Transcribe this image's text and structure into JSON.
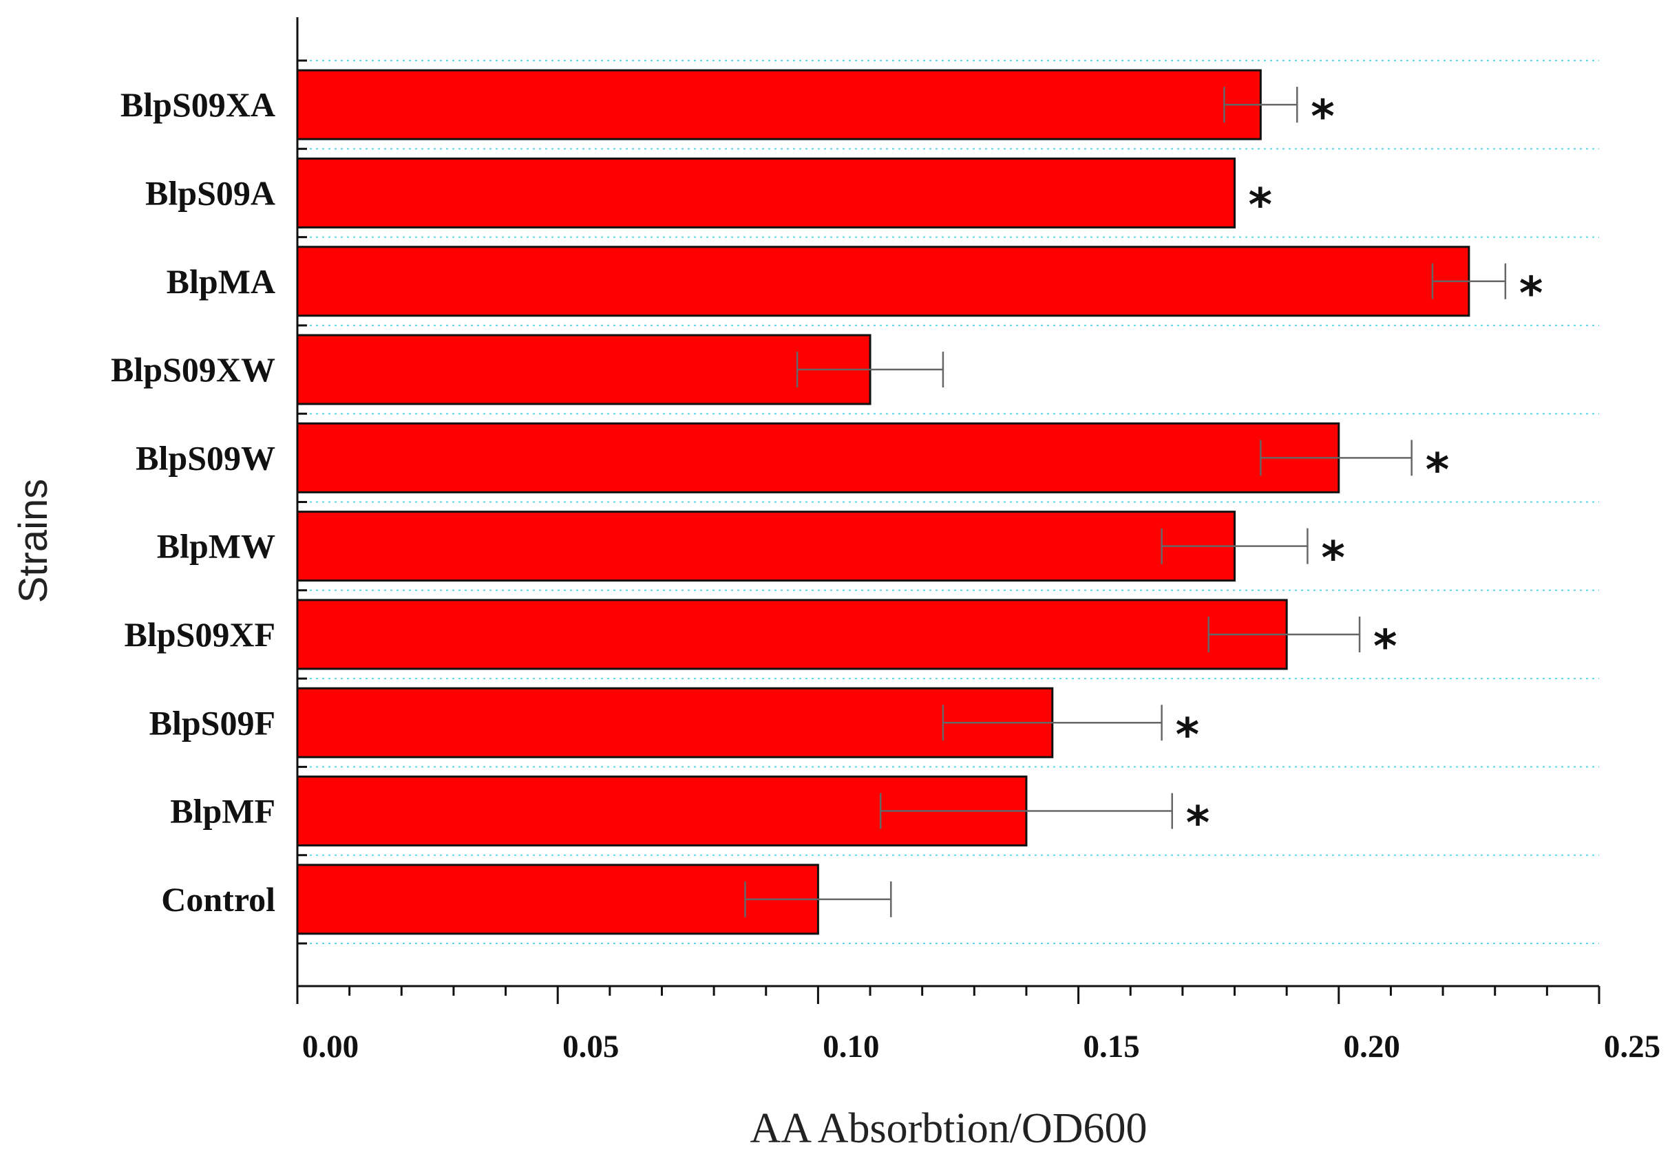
{
  "chart_data": {
    "type": "bar",
    "orientation": "horizontal",
    "title": "",
    "xlabel": "AA Absorbtion/OD600",
    "ylabel": "Strains",
    "xlim": [
      0,
      0.25
    ],
    "xticks": [
      "0.00",
      "0.05",
      "0.10",
      "0.15",
      "0.20",
      "0.25"
    ],
    "categories": [
      "BlpS09XA",
      "BlpS09A",
      "BlpMA",
      "BlpS09XW",
      "BlpS09W",
      "BlpMW",
      "BlpS09XF",
      "BlpS09F",
      "BlpMF",
      "Control"
    ],
    "values": [
      0.185,
      0.18,
      0.225,
      0.11,
      0.2,
      0.18,
      0.19,
      0.145,
      0.14,
      0.1
    ],
    "error_low": [
      0.178,
      null,
      0.218,
      0.096,
      0.185,
      0.166,
      0.175,
      0.124,
      0.112,
      0.086
    ],
    "error_high": [
      0.192,
      null,
      0.232,
      0.124,
      0.214,
      0.194,
      0.204,
      0.166,
      0.168,
      0.114
    ],
    "significance": [
      "*",
      "*",
      "*",
      "",
      "*",
      "*",
      "*",
      "*",
      "*",
      ""
    ],
    "colors": {
      "bar": "#ff0000",
      "bar_edge": "#111111",
      "axis": "#111111",
      "grid": "#5ad8e6",
      "error": "#666666"
    },
    "grid": "dotted horizontal"
  }
}
